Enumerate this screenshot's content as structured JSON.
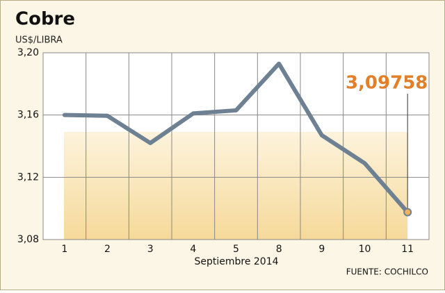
{
  "chart_data": {
    "type": "line",
    "title": "Cobre",
    "subtitle": "US$/LIBRA",
    "x_label": "Septiembre 2014",
    "source": "FUENTE: COCHILCO",
    "categories": [
      "1",
      "2",
      "3",
      "4",
      "5",
      "8",
      "9",
      "10",
      "11"
    ],
    "series": [
      {
        "color": "#6e8193",
        "values": [
          3.16,
          3.1595,
          3.142,
          3.161,
          3.163,
          3.193,
          3.147,
          3.129,
          3.09758
        ],
        "value_labels": [
          null,
          null,
          null,
          null,
          null,
          null,
          null,
          null,
          "3,09758"
        ]
      }
    ],
    "label_color": "#e2802a",
    "ylim": [
      3.08,
      3.2
    ],
    "yticks": [
      {
        "value": 3.08,
        "label": "3,08"
      },
      {
        "value": 3.12,
        "label": "3,12"
      },
      {
        "value": 3.16,
        "label": "3,16"
      },
      {
        "value": 3.2,
        "label": "3,20"
      }
    ],
    "grid": true
  }
}
